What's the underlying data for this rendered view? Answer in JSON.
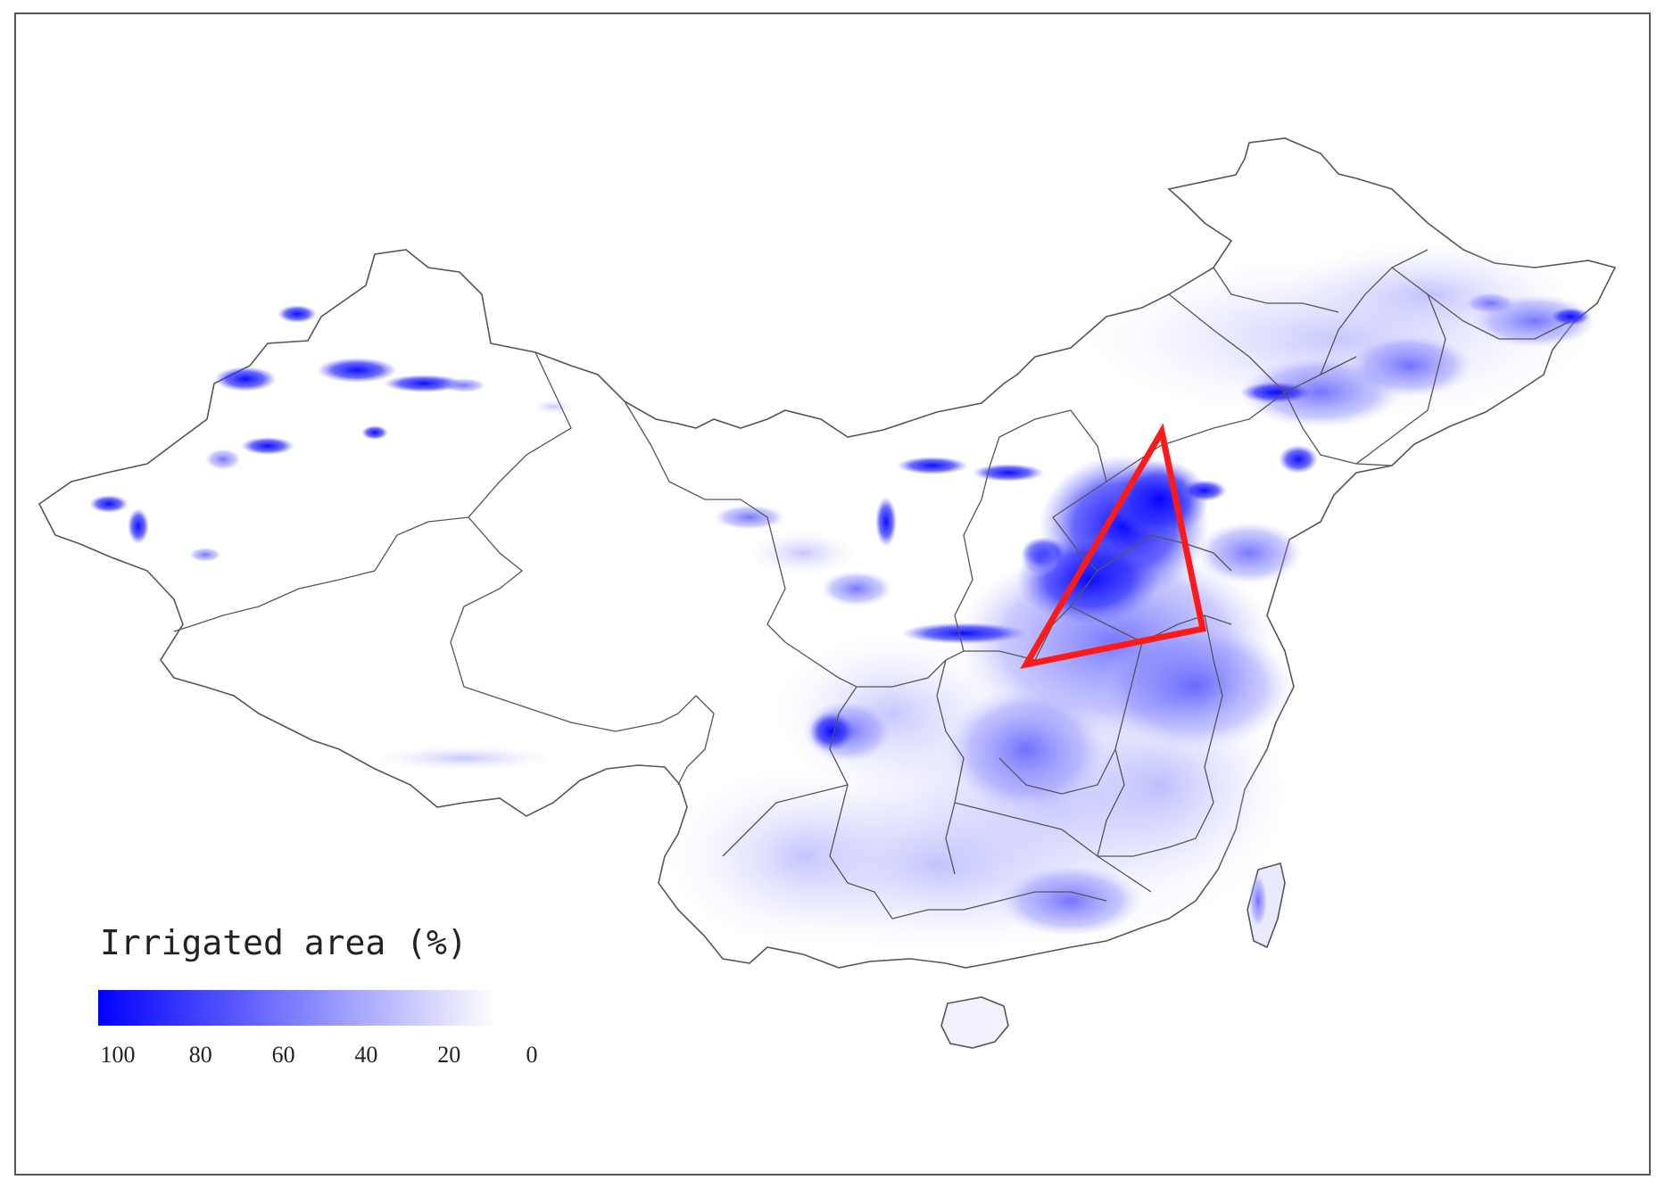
{
  "legend": {
    "title": "Irrigated area (%)",
    "ticks": [
      "100",
      "80",
      "60",
      "40",
      "20",
      "0"
    ],
    "gradient_from": "#0000ff",
    "gradient_to": "#ffffff"
  },
  "colors": {
    "irrigation_high": "#0000ff",
    "irrigation_mid": "#6a6aff",
    "irrigation_low": "#c8c8ff",
    "boundary": "#555555",
    "highlight_triangle": "#ff1a1a"
  },
  "annotation": {
    "shape": "triangle",
    "meaning": "highlighted high-irrigation region (North China Plain)"
  }
}
